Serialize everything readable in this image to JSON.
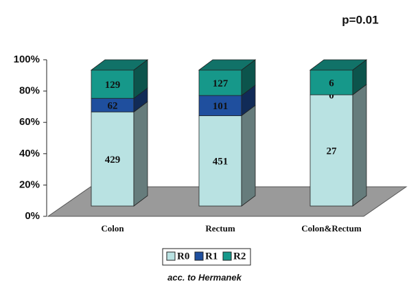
{
  "chart_data": {
    "type": "bar",
    "stacking": "percent",
    "annotation": "p=0.01",
    "footnote": "acc. to Hermanek",
    "categories": [
      "Colon",
      "Rectum",
      "Colon&Rectum"
    ],
    "series": [
      {
        "name": "R0",
        "color": "#b9e2e2",
        "values": [
          429,
          451,
          27
        ]
      },
      {
        "name": "R1",
        "color": "#1f4f9e",
        "values": [
          62,
          101,
          0
        ]
      },
      {
        "name": "R2",
        "color": "#16988a",
        "values": [
          129,
          127,
          6
        ]
      }
    ],
    "ylim": [
      0,
      100
    ],
    "yticks": [
      {
        "value": 0,
        "label": "0%"
      },
      {
        "value": 20,
        "label": "20%"
      },
      {
        "value": 40,
        "label": "40%"
      },
      {
        "value": 60,
        "label": "60%"
      },
      {
        "value": 80,
        "label": "80%"
      },
      {
        "value": 100,
        "label": "100%"
      }
    ],
    "legend": "bottom"
  }
}
